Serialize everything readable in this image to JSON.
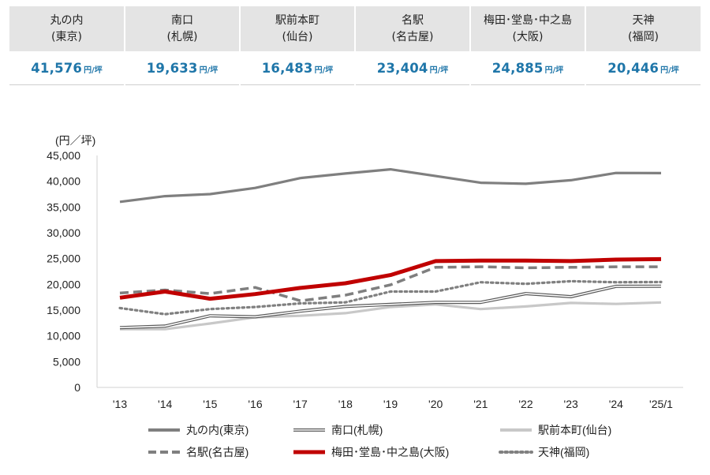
{
  "summary": {
    "unit": "円/坪",
    "items": [
      {
        "name": "丸の内",
        "area": "(東京)",
        "value": "41,576"
      },
      {
        "name": "南口",
        "area": "(札幌)",
        "value": "19,633"
      },
      {
        "name": "駅前本町",
        "area": "(仙台)",
        "value": "16,483"
      },
      {
        "name": "名駅",
        "area": "(名古屋)",
        "value": "23,404"
      },
      {
        "name": "梅田･堂島･中之島",
        "area": "(大阪)",
        "value": "24,885"
      },
      {
        "name": "天神",
        "area": "(福岡)",
        "value": "20,446"
      }
    ]
  },
  "chart_data": {
    "type": "line",
    "ylabel": "(円／坪)",
    "ylim": [
      0,
      45000
    ],
    "yticks": [
      0,
      5000,
      10000,
      15000,
      20000,
      25000,
      30000,
      35000,
      40000,
      45000
    ],
    "ytick_labels": [
      "0",
      "5,000",
      "10,000",
      "15,000",
      "20,000",
      "25,000",
      "30,000",
      "35,000",
      "40,000",
      "45,000"
    ],
    "categories": [
      "'13",
      "'14",
      "'15",
      "'16",
      "'17",
      "'18",
      "'19",
      "'20",
      "'21",
      "'22",
      "'23",
      "'24",
      "'25/1"
    ],
    "grid": false,
    "legend_position": "bottom",
    "series": [
      {
        "name": "丸の内(東京)",
        "color": "#7f7f7f",
        "style": "solid",
        "values": [
          36000,
          37100,
          37500,
          38700,
          40600,
          41500,
          42300,
          41000,
          39700,
          39500,
          40200,
          41600,
          41576
        ]
      },
      {
        "name": "南口(札幌)",
        "color": "#595959",
        "style": "double",
        "values": [
          11600,
          11900,
          13900,
          13700,
          14800,
          15700,
          16100,
          16500,
          16500,
          18200,
          17600,
          19600,
          19633
        ]
      },
      {
        "name": "駅前本町(仙台)",
        "color": "#c8c8c8",
        "style": "solid",
        "values": [
          11300,
          11300,
          12400,
          13600,
          13900,
          14400,
          15600,
          16100,
          15200,
          15700,
          16400,
          16200,
          16483
        ]
      },
      {
        "name": "名駅(名古屋)",
        "color": "#7f7f7f",
        "style": "dashed",
        "values": [
          18300,
          18900,
          18200,
          19400,
          16800,
          17900,
          19900,
          23300,
          23400,
          23200,
          23300,
          23400,
          23404
        ]
      },
      {
        "name": "梅田･堂島･中之島(大阪)",
        "color": "#c00000",
        "style": "solid",
        "values": [
          17400,
          18600,
          17200,
          18100,
          19300,
          20200,
          21800,
          24500,
          24600,
          24600,
          24500,
          24800,
          24885
        ]
      },
      {
        "name": "天神(福岡)",
        "color": "#808080",
        "style": "dotted",
        "values": [
          15400,
          14200,
          15200,
          15600,
          16300,
          16500,
          18600,
          18600,
          20400,
          20100,
          20600,
          20400,
          20446
        ]
      }
    ]
  }
}
